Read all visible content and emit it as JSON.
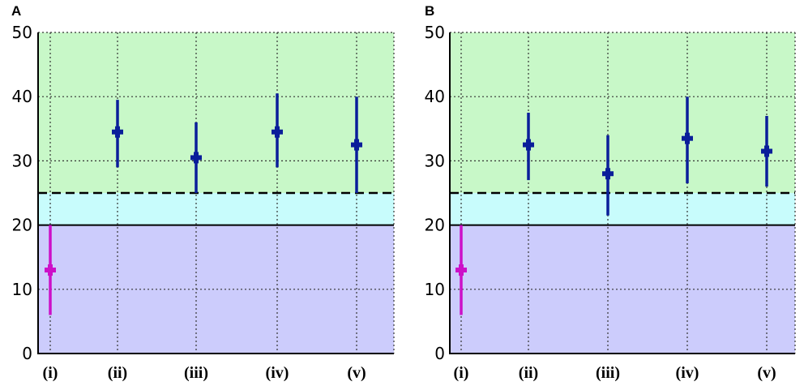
{
  "colors": {
    "green_band": "#c8f8c8",
    "cyan_band": "#c8fcfc",
    "purple_band": "#ccccfc",
    "blue_marker": "#0a1e9a",
    "magenta_marker": "#cc10c8",
    "grid": "#333333"
  },
  "chart_data": [
    {
      "panel": "A",
      "type": "scatter",
      "error_bars": true,
      "categories": [
        "(i)",
        "(ii)",
        "(iii)",
        "(iv)",
        "(v)"
      ],
      "y_ticks": [
        "0",
        "10",
        "20",
        "30",
        "40",
        "50"
      ],
      "ylim": [
        0,
        50
      ],
      "grid": true,
      "bands": [
        {
          "from": 25,
          "to": 50,
          "color": "green_band"
        },
        {
          "from": 20,
          "to": 25,
          "color": "cyan_band"
        },
        {
          "from": 0,
          "to": 20,
          "color": "purple_band"
        }
      ],
      "reference_lines": [
        {
          "y": 25,
          "style": "dashed"
        },
        {
          "y": 20,
          "style": "solid"
        }
      ],
      "points": [
        {
          "category": "(i)",
          "y": 13,
          "low": 6,
          "high": 20,
          "color": "magenta_marker"
        },
        {
          "category": "(ii)",
          "y": 34.5,
          "low": 29,
          "high": 39.5,
          "color": "blue_marker"
        },
        {
          "category": "(iii)",
          "y": 30.5,
          "low": 25,
          "high": 36,
          "color": "blue_marker"
        },
        {
          "category": "(iv)",
          "y": 34.5,
          "low": 29,
          "high": 40.5,
          "color": "blue_marker"
        },
        {
          "category": "(v)",
          "y": 32.5,
          "low": 25,
          "high": 40,
          "color": "blue_marker"
        }
      ]
    },
    {
      "panel": "B",
      "type": "scatter",
      "error_bars": true,
      "categories": [
        "(i)",
        "(ii)",
        "(iii)",
        "(iv)",
        "(v)"
      ],
      "y_ticks": [
        "0",
        "10",
        "20",
        "30",
        "40",
        "50"
      ],
      "ylim": [
        0,
        50
      ],
      "grid": true,
      "bands": [
        {
          "from": 25,
          "to": 50,
          "color": "green_band"
        },
        {
          "from": 20,
          "to": 25,
          "color": "cyan_band"
        },
        {
          "from": 0,
          "to": 20,
          "color": "purple_band"
        }
      ],
      "reference_lines": [
        {
          "y": 25,
          "style": "dashed"
        },
        {
          "y": 20,
          "style": "solid"
        }
      ],
      "points": [
        {
          "category": "(i)",
          "y": 13,
          "low": 6,
          "high": 20,
          "color": "magenta_marker"
        },
        {
          "category": "(ii)",
          "y": 32.5,
          "low": 27,
          "high": 37.5,
          "color": "blue_marker"
        },
        {
          "category": "(iii)",
          "y": 28,
          "low": 21.5,
          "high": 34,
          "color": "blue_marker"
        },
        {
          "category": "(iv)",
          "y": 33.5,
          "low": 26.5,
          "high": 40,
          "color": "blue_marker"
        },
        {
          "category": "(v)",
          "y": 31.5,
          "low": 26,
          "high": 37,
          "color": "blue_marker"
        }
      ]
    }
  ]
}
